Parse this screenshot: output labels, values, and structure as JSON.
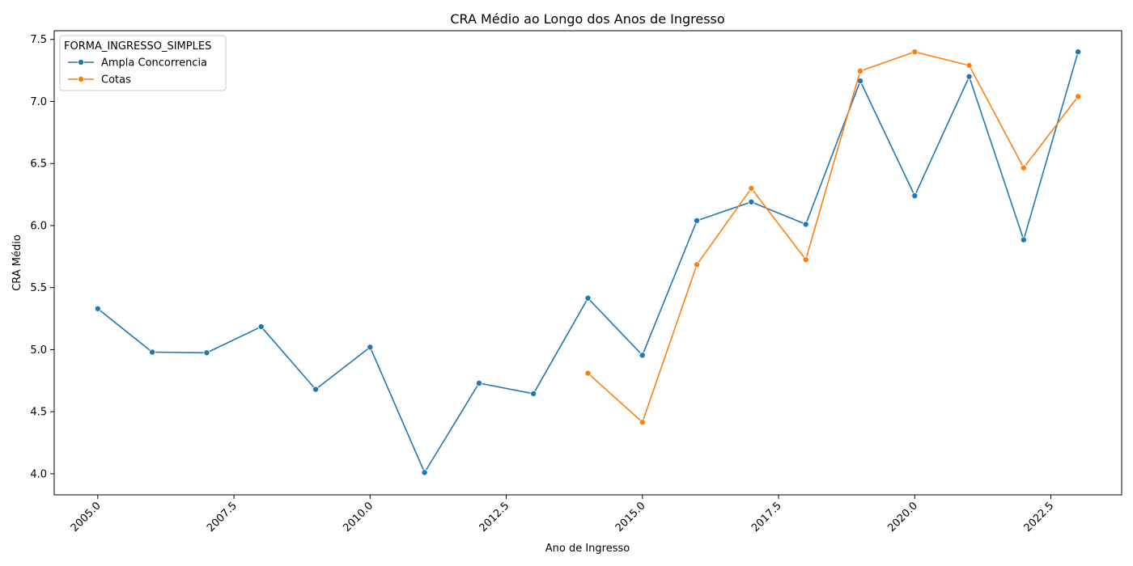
{
  "chart_data": {
    "type": "line",
    "title": "CRA Médio ao Longo dos Anos de Ingresso",
    "xlabel": "Ano de Ingresso",
    "ylabel": "CRA Médio",
    "xlim": [
      2004.2,
      2023.8
    ],
    "ylim": [
      3.83,
      7.57
    ],
    "x_ticks": [
      2005.0,
      2007.5,
      2010.0,
      2012.5,
      2015.0,
      2017.5,
      2020.0,
      2022.5
    ],
    "x_tick_labels": [
      "2005.0",
      "2007.5",
      "2010.0",
      "2012.5",
      "2015.0",
      "2017.5",
      "2020.0",
      "2022.5"
    ],
    "y_ticks": [
      4.0,
      4.5,
      5.0,
      5.5,
      6.0,
      6.5,
      7.0,
      7.5
    ],
    "y_tick_labels": [
      "4.0",
      "4.5",
      "5.0",
      "5.5",
      "6.0",
      "6.5",
      "7.0",
      "7.5"
    ],
    "grid": false,
    "legend": {
      "title": "FORMA_INGRESSO_SIMPLES",
      "placement": "top-left"
    },
    "series": [
      {
        "name": "Ampla Concorrencia",
        "color": "#1f77b4",
        "x": [
          2005,
          2006,
          2007,
          2008,
          2009,
          2010,
          2011,
          2012,
          2013,
          2014,
          2015,
          2016,
          2017,
          2018,
          2019,
          2020,
          2021,
          2022,
          2023
        ],
        "y": [
          5.33,
          4.98,
          4.975,
          5.185,
          4.68,
          5.02,
          4.01,
          4.73,
          4.645,
          5.415,
          4.955,
          6.04,
          6.19,
          6.01,
          7.165,
          6.24,
          7.2,
          5.885,
          7.4
        ]
      },
      {
        "name": "Cotas",
        "color": "#ff7f0e",
        "x": [
          2014,
          2015,
          2016,
          2017,
          2018,
          2019,
          2020,
          2021,
          2022,
          2023
        ],
        "y": [
          4.81,
          4.415,
          5.685,
          6.3,
          5.725,
          7.245,
          7.4,
          7.29,
          6.465,
          7.04
        ]
      }
    ]
  }
}
